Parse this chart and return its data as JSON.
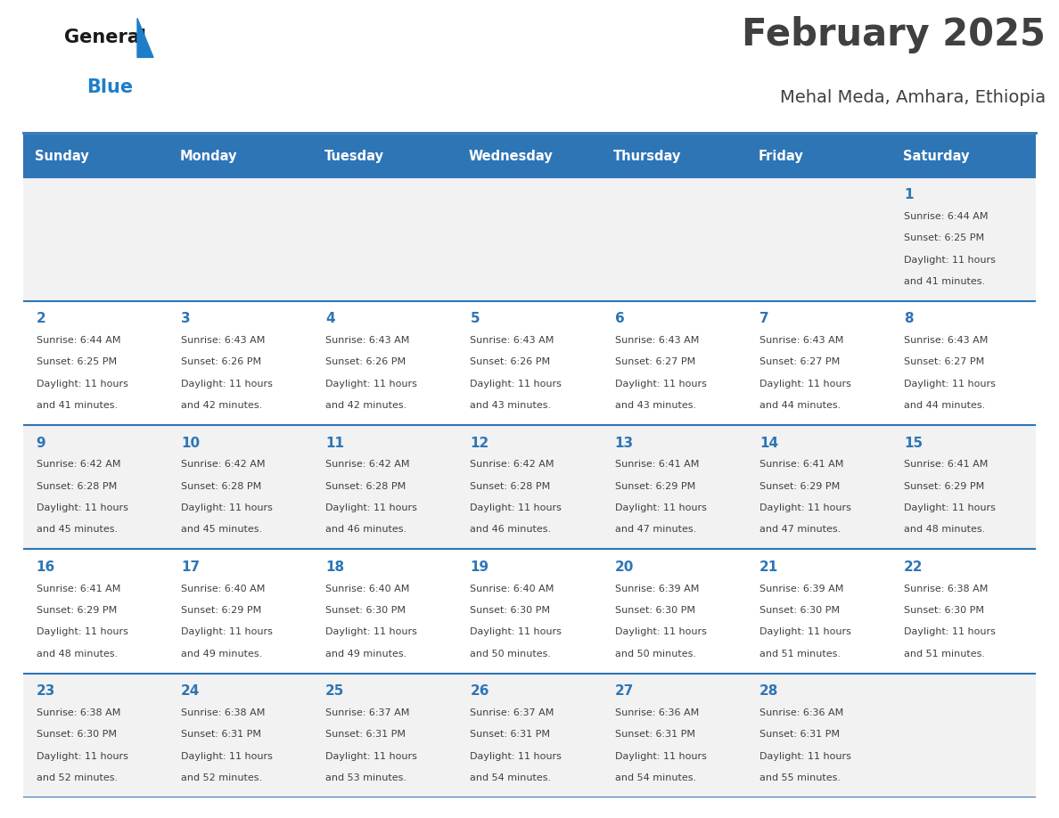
{
  "title": "February 2025",
  "subtitle": "Mehal Meda, Amhara, Ethiopia",
  "days_of_week": [
    "Sunday",
    "Monday",
    "Tuesday",
    "Wednesday",
    "Thursday",
    "Friday",
    "Saturday"
  ],
  "header_bg": "#2E75B6",
  "header_text": "#FFFFFF",
  "cell_bg_light": "#F2F2F2",
  "cell_bg_white": "#FFFFFF",
  "row_line_color": "#2E75B6",
  "title_color": "#404040",
  "subtitle_color": "#404040",
  "day_number_color": "#2E75B6",
  "cell_text_color": "#404040",
  "logo_black": "#1A1A1A",
  "logo_blue": "#1E7EC8",
  "calendar_data": [
    [
      null,
      null,
      null,
      null,
      null,
      null,
      {
        "day": 1,
        "sunrise": "6:44 AM",
        "sunset": "6:25 PM",
        "daylight_h": "11 hours",
        "daylight_m": "and 41 minutes."
      }
    ],
    [
      {
        "day": 2,
        "sunrise": "6:44 AM",
        "sunset": "6:25 PM",
        "daylight_h": "11 hours",
        "daylight_m": "and 41 minutes."
      },
      {
        "day": 3,
        "sunrise": "6:43 AM",
        "sunset": "6:26 PM",
        "daylight_h": "11 hours",
        "daylight_m": "and 42 minutes."
      },
      {
        "day": 4,
        "sunrise": "6:43 AM",
        "sunset": "6:26 PM",
        "daylight_h": "11 hours",
        "daylight_m": "and 42 minutes."
      },
      {
        "day": 5,
        "sunrise": "6:43 AM",
        "sunset": "6:26 PM",
        "daylight_h": "11 hours",
        "daylight_m": "and 43 minutes."
      },
      {
        "day": 6,
        "sunrise": "6:43 AM",
        "sunset": "6:27 PM",
        "daylight_h": "11 hours",
        "daylight_m": "and 43 minutes."
      },
      {
        "day": 7,
        "sunrise": "6:43 AM",
        "sunset": "6:27 PM",
        "daylight_h": "11 hours",
        "daylight_m": "and 44 minutes."
      },
      {
        "day": 8,
        "sunrise": "6:43 AM",
        "sunset": "6:27 PM",
        "daylight_h": "11 hours",
        "daylight_m": "and 44 minutes."
      }
    ],
    [
      {
        "day": 9,
        "sunrise": "6:42 AM",
        "sunset": "6:28 PM",
        "daylight_h": "11 hours",
        "daylight_m": "and 45 minutes."
      },
      {
        "day": 10,
        "sunrise": "6:42 AM",
        "sunset": "6:28 PM",
        "daylight_h": "11 hours",
        "daylight_m": "and 45 minutes."
      },
      {
        "day": 11,
        "sunrise": "6:42 AM",
        "sunset": "6:28 PM",
        "daylight_h": "11 hours",
        "daylight_m": "and 46 minutes."
      },
      {
        "day": 12,
        "sunrise": "6:42 AM",
        "sunset": "6:28 PM",
        "daylight_h": "11 hours",
        "daylight_m": "and 46 minutes."
      },
      {
        "day": 13,
        "sunrise": "6:41 AM",
        "sunset": "6:29 PM",
        "daylight_h": "11 hours",
        "daylight_m": "and 47 minutes."
      },
      {
        "day": 14,
        "sunrise": "6:41 AM",
        "sunset": "6:29 PM",
        "daylight_h": "11 hours",
        "daylight_m": "and 47 minutes."
      },
      {
        "day": 15,
        "sunrise": "6:41 AM",
        "sunset": "6:29 PM",
        "daylight_h": "11 hours",
        "daylight_m": "and 48 minutes."
      }
    ],
    [
      {
        "day": 16,
        "sunrise": "6:41 AM",
        "sunset": "6:29 PM",
        "daylight_h": "11 hours",
        "daylight_m": "and 48 minutes."
      },
      {
        "day": 17,
        "sunrise": "6:40 AM",
        "sunset": "6:29 PM",
        "daylight_h": "11 hours",
        "daylight_m": "and 49 minutes."
      },
      {
        "day": 18,
        "sunrise": "6:40 AM",
        "sunset": "6:30 PM",
        "daylight_h": "11 hours",
        "daylight_m": "and 49 minutes."
      },
      {
        "day": 19,
        "sunrise": "6:40 AM",
        "sunset": "6:30 PM",
        "daylight_h": "11 hours",
        "daylight_m": "and 50 minutes."
      },
      {
        "day": 20,
        "sunrise": "6:39 AM",
        "sunset": "6:30 PM",
        "daylight_h": "11 hours",
        "daylight_m": "and 50 minutes."
      },
      {
        "day": 21,
        "sunrise": "6:39 AM",
        "sunset": "6:30 PM",
        "daylight_h": "11 hours",
        "daylight_m": "and 51 minutes."
      },
      {
        "day": 22,
        "sunrise": "6:38 AM",
        "sunset": "6:30 PM",
        "daylight_h": "11 hours",
        "daylight_m": "and 51 minutes."
      }
    ],
    [
      {
        "day": 23,
        "sunrise": "6:38 AM",
        "sunset": "6:30 PM",
        "daylight_h": "11 hours",
        "daylight_m": "and 52 minutes."
      },
      {
        "day": 24,
        "sunrise": "6:38 AM",
        "sunset": "6:31 PM",
        "daylight_h": "11 hours",
        "daylight_m": "and 52 minutes."
      },
      {
        "day": 25,
        "sunrise": "6:37 AM",
        "sunset": "6:31 PM",
        "daylight_h": "11 hours",
        "daylight_m": "and 53 minutes."
      },
      {
        "day": 26,
        "sunrise": "6:37 AM",
        "sunset": "6:31 PM",
        "daylight_h": "11 hours",
        "daylight_m": "and 54 minutes."
      },
      {
        "day": 27,
        "sunrise": "6:36 AM",
        "sunset": "6:31 PM",
        "daylight_h": "11 hours",
        "daylight_m": "and 54 minutes."
      },
      {
        "day": 28,
        "sunrise": "6:36 AM",
        "sunset": "6:31 PM",
        "daylight_h": "11 hours",
        "daylight_m": "and 55 minutes."
      },
      null
    ]
  ]
}
